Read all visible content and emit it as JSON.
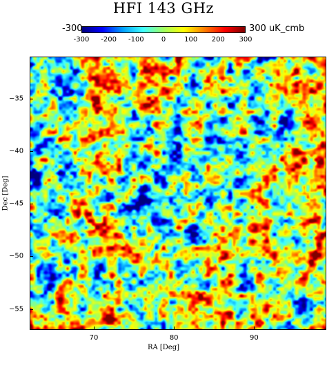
{
  "chart_data": {
    "type": "heatmap",
    "title": "HFI 143 GHz",
    "xlabel": "RA [Deg]",
    "ylabel": "Dec [Deg]",
    "xticks": [
      "70",
      "80",
      "90"
    ],
    "yticks": [
      "-35",
      "-40",
      "-45",
      "-50",
      "-55"
    ],
    "xlim": [
      62,
      99
    ],
    "ylim": [
      -57,
      -31
    ],
    "colorbar": {
      "min_label": "-300",
      "max_label": "300 uK_cmb",
      "ticks": [
        "-300",
        "-200",
        "-100",
        "0",
        "100",
        "200",
        "300"
      ],
      "range": [
        -300,
        300
      ],
      "colormap": [
        "#00007f",
        "#0000ff",
        "#00a0ff",
        "#40ffff",
        "#a0ff60",
        "#ffff00",
        "#ff8000",
        "#ff0000",
        "#800000"
      ]
    },
    "description_values": "CMB temperature fluctuation map in uK_cmb"
  }
}
